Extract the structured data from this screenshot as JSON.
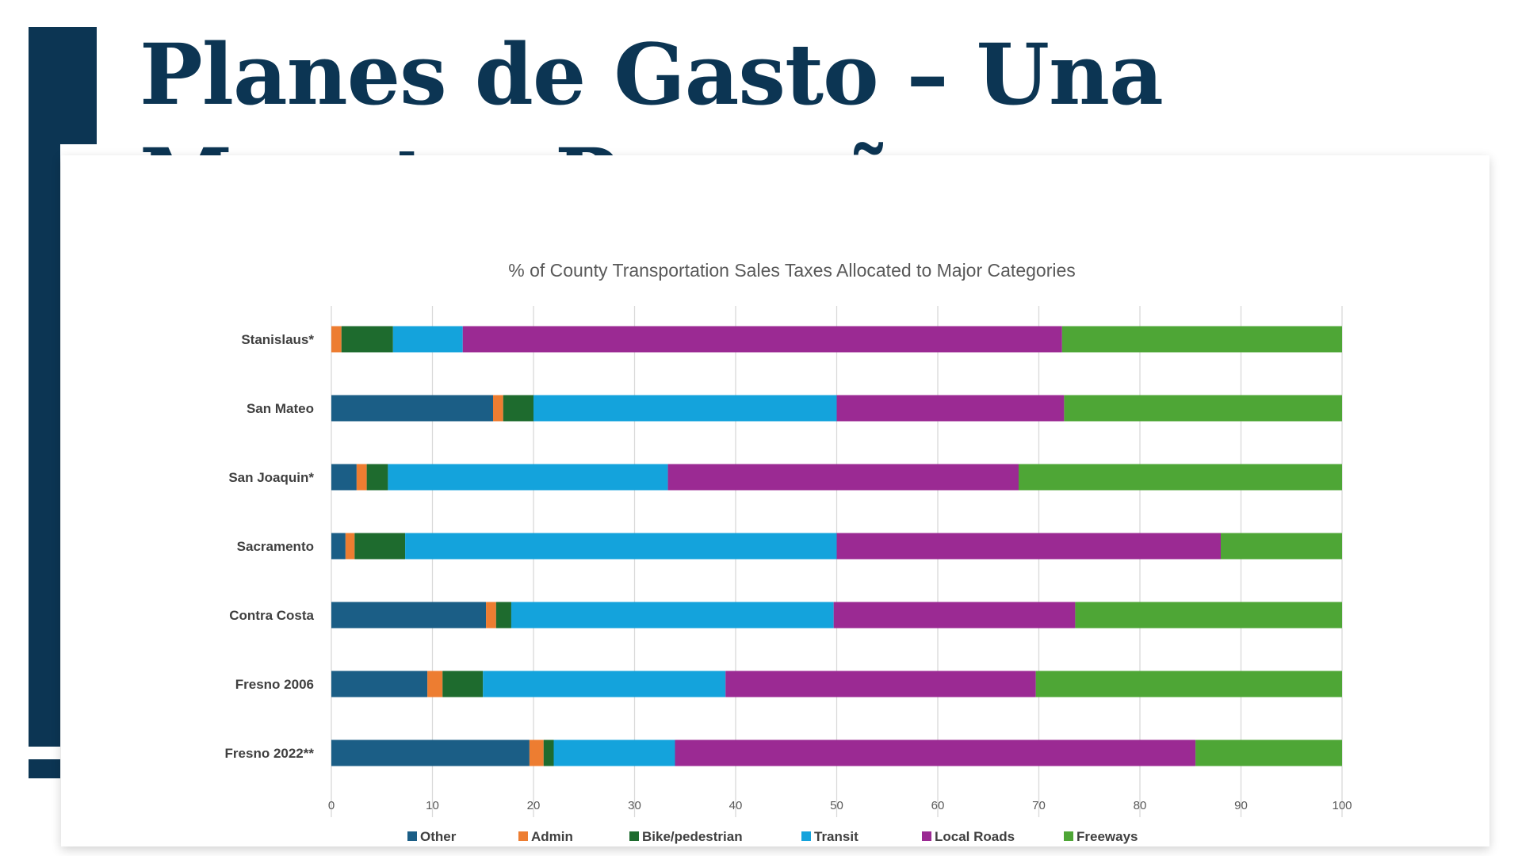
{
  "slide": {
    "title_line1": "Planes de Gasto – Una",
    "title_line2": "Muestra Pequeña",
    "accent_color": "#0c3553"
  },
  "chart_data": {
    "type": "bar",
    "orientation": "horizontal",
    "stacked": true,
    "title": "% of County Transportation Sales Taxes Allocated to Major Categories",
    "xlabel": "",
    "ylabel": "",
    "xlim": [
      0,
      100
    ],
    "xticks": [
      0,
      10,
      20,
      30,
      40,
      50,
      60,
      70,
      80,
      90,
      100
    ],
    "grid": true,
    "legend_position": "bottom",
    "categories": [
      "Stanislaus*",
      "San Mateo",
      "San Joaquin*",
      "Sacramento",
      "Contra Costa",
      "Fresno 2006",
      "Fresno 2022**"
    ],
    "series": [
      {
        "name": "Other",
        "color": "#1b5e86",
        "values": [
          0,
          16,
          2.5,
          1.4,
          15.3,
          9.5,
          19.6
        ]
      },
      {
        "name": "Admin",
        "color": "#ed7d31",
        "values": [
          1,
          1,
          1,
          0.9,
          1,
          1.5,
          1.4
        ]
      },
      {
        "name": "Bike/pedestrian",
        "color": "#1e6b2e",
        "values": [
          5.1,
          3,
          2.1,
          5,
          1.5,
          4,
          1
        ]
      },
      {
        "name": "Transit",
        "color": "#14a3dc",
        "values": [
          6.9,
          30,
          27.7,
          42.7,
          31.9,
          24,
          12
        ]
      },
      {
        "name": "Local Roads",
        "color": "#9b2a93",
        "values": [
          59.3,
          22.5,
          34.7,
          38,
          23.9,
          30.7,
          51.5
        ]
      },
      {
        "name": "Freeways",
        "color": "#4ea636",
        "values": [
          27.7,
          27.5,
          32,
          12,
          26.4,
          30.3,
          14.5
        ]
      }
    ]
  }
}
